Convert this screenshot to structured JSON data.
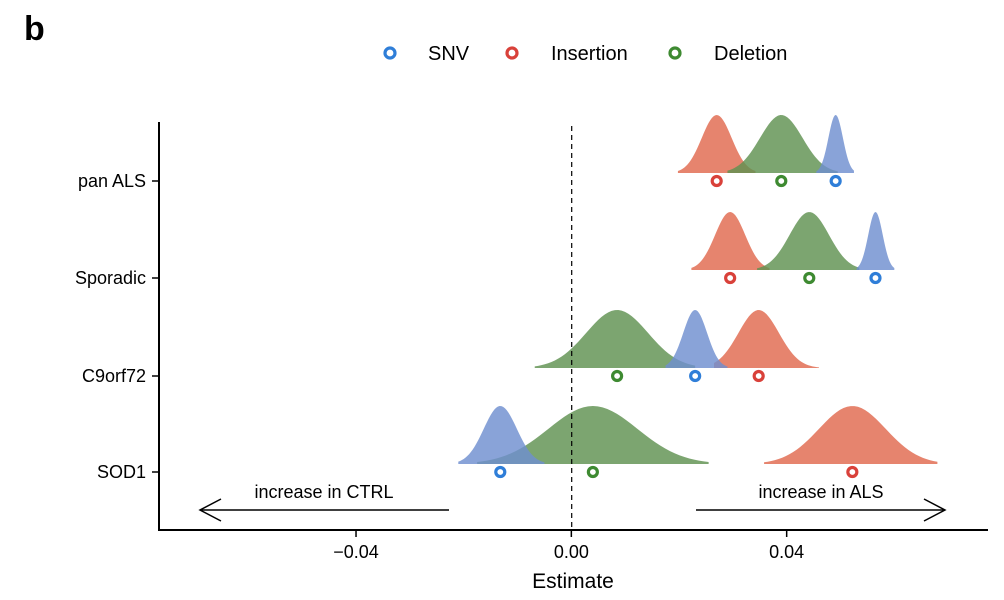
{
  "panel_label": "b",
  "chart_data": {
    "type": "ridge-interval",
    "xlabel": "Estimate",
    "ylabel": "",
    "xlim": [
      -0.0766,
      0.0774
    ],
    "xticks": [
      -0.04,
      0.0,
      0.04
    ],
    "xtick_labels": [
      "−0.04",
      "0.00",
      "0.04"
    ],
    "reference_line_x": 0.0,
    "categories": [
      "pan ALS",
      "Sporadic",
      "C9orf72",
      "SOD1"
    ],
    "legend": {
      "position": "top"
    },
    "series": [
      {
        "name": "SNV",
        "color": "#2f7ed8",
        "fill": "#6f8fd0",
        "estimates": [
          0.0491,
          0.0565,
          0.023,
          -0.0132
        ],
        "ranges": [
          [
            0.0455,
            0.0525
          ],
          [
            0.053,
            0.06
          ],
          [
            0.0175,
            0.029
          ],
          [
            -0.021,
            -0.005
          ]
        ]
      },
      {
        "name": "Insertion",
        "color": "#d9413a",
        "fill": "#e0694e",
        "estimates": [
          0.027,
          0.0295,
          0.0348,
          0.0522
        ],
        "ranges": [
          [
            0.0198,
            0.0342
          ],
          [
            0.0223,
            0.0368
          ],
          [
            0.0265,
            0.046
          ],
          [
            0.0358,
            0.068
          ]
        ]
      },
      {
        "name": "Deletion",
        "color": "#3e8a31",
        "fill": "#5f9150",
        "estimates": [
          0.039,
          0.0442,
          0.0085,
          0.004
        ],
        "ranges": [
          [
            0.029,
            0.0495
          ],
          [
            0.0345,
            0.0535
          ],
          [
            -0.0068,
            0.023
          ],
          [
            -0.0175,
            0.0255
          ]
        ]
      }
    ],
    "annotations": [
      {
        "text": "increase in CTRL",
        "direction": "left"
      },
      {
        "text": "increase in ALS",
        "direction": "right"
      }
    ]
  }
}
